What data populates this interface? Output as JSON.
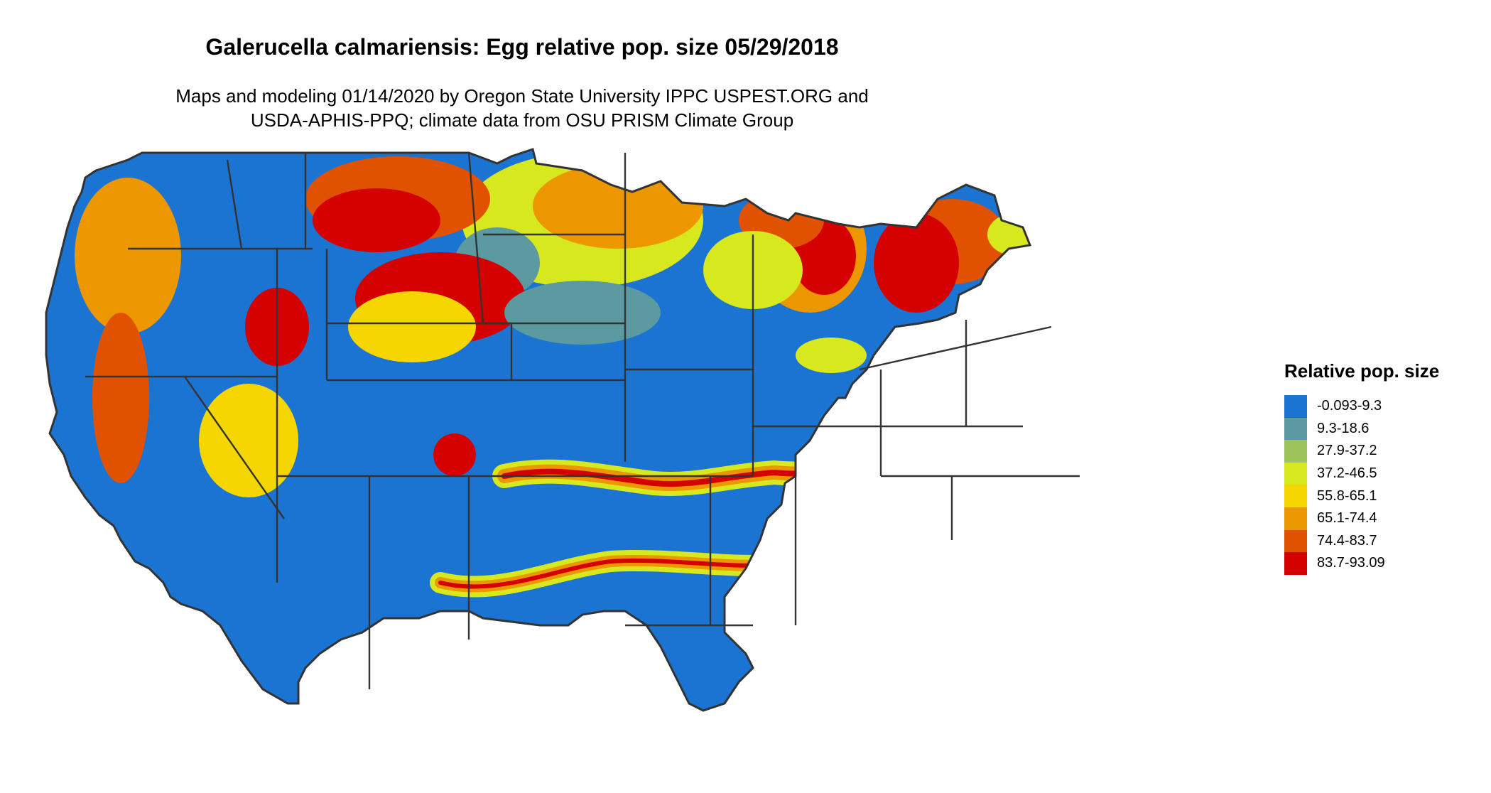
{
  "title": "Galerucella calmariensis: Egg relative pop. size 05/29/2018",
  "subtitle_line1": "Maps and modeling 01/14/2020 by Oregon State University IPPC USPEST.ORG and",
  "subtitle_line2": "USDA-APHIS-PPQ; climate data from OSU PRISM Climate Group",
  "map": {
    "region": "contiguous United States",
    "boundary_color": "#333333",
    "background_class": "-0.093-9.3"
  },
  "legend": {
    "title": "Relative pop. size",
    "items": [
      {
        "label": "-0.093-9.3",
        "color": "#1b74d1"
      },
      {
        "label": "9.3-18.6",
        "color": "#5b9aa0"
      },
      {
        "label": "27.9-37.2",
        "color": "#9cc25a"
      },
      {
        "label": "37.2-46.5",
        "color": "#d8e81e"
      },
      {
        "label": "55.8-65.1",
        "color": "#f5d600"
      },
      {
        "label": "65.1-74.4",
        "color": "#ec9600"
      },
      {
        "label": "74.4-83.7",
        "color": "#e05200"
      },
      {
        "label": "83.7-93.09",
        "color": "#d40000"
      }
    ]
  }
}
